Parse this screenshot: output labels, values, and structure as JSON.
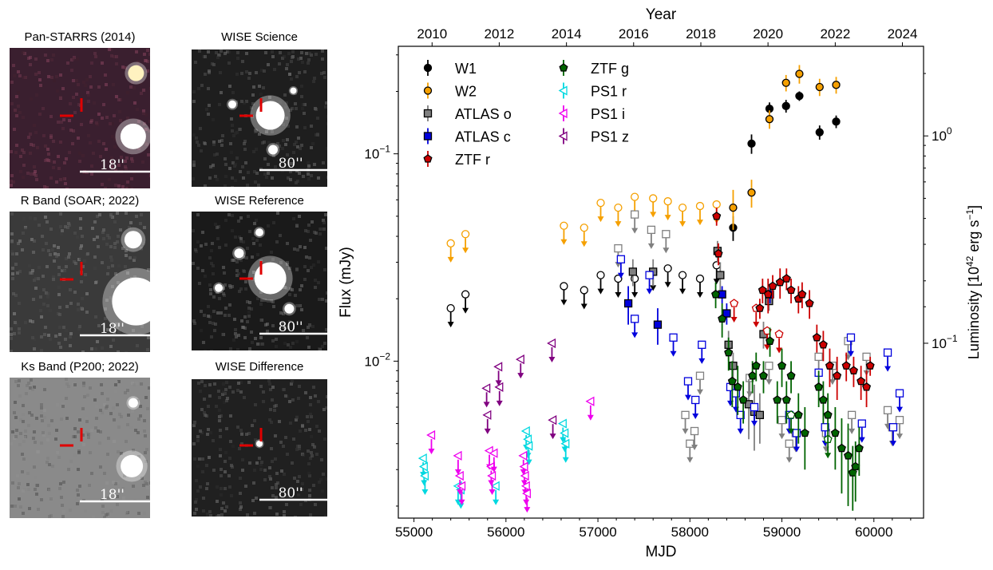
{
  "panels": [
    {
      "title": "Pan-STARRS (2014)",
      "scale": "18''",
      "bg": "#3a1f2f"
    },
    {
      "title": "WISE Science",
      "scale": "80''",
      "bg": "#1e1e1e"
    },
    {
      "title": "R Band (SOAR; 2022)",
      "scale": "18''",
      "bg": "#3a3a3a"
    },
    {
      "title": "WISE Reference",
      "scale": "80''",
      "bg": "#1a1a1a"
    },
    {
      "title": "Ks Band (P200; 2022)",
      "scale": "18''",
      "bg": "#8a8a8a"
    },
    {
      "title": "WISE Difference",
      "scale": "80''",
      "bg": "#202020"
    }
  ],
  "chart_data": {
    "type": "scatter",
    "xlabel": "MJD",
    "ylabel": "Flux (mJy)",
    "ylabel_right_main": "Luminosity [10",
    "ylabel_right_sup1": "42",
    "ylabel_right_mid": " erg s",
    "ylabel_right_sup2": "−1",
    "ylabel_right_end": "]",
    "top_xlabel": "Year",
    "xlim": [
      54830,
      60540
    ],
    "ylim_log": [
      0.00175,
      0.33
    ],
    "x_ticks": [
      "55000",
      "56000",
      "57000",
      "58000",
      "59000",
      "60000"
    ],
    "x_tick_values": [
      55000,
      56000,
      57000,
      58000,
      59000,
      60000
    ],
    "year_ticks": [
      "2010",
      "2012",
      "2014",
      "2016",
      "2018",
      "2020",
      "2022",
      "2024"
    ],
    "year_tick_mjd": [
      55197,
      55927,
      56658,
      57388,
      58119,
      58849,
      59580,
      60310
    ],
    "y_tick_labels": [
      {
        "label": "10",
        "sup": "−2",
        "value": 0.01
      },
      {
        "label": "10",
        "sup": "−1",
        "value": 0.1
      }
    ],
    "right_tick_labels": [
      {
        "label": "10",
        "sup": "0",
        "value": 0.122
      },
      {
        "label": "10",
        "sup": "−1",
        "value": 0.0122
      }
    ],
    "legend": [
      {
        "name": "W1",
        "color": "#000000",
        "marker": "circle"
      },
      {
        "name": "W2",
        "color": "#f5a000",
        "marker": "circle"
      },
      {
        "name": "ATLAS o",
        "color": "#808080",
        "marker": "square"
      },
      {
        "name": "ATLAS c",
        "color": "#0000dd",
        "marker": "square"
      },
      {
        "name": "ZTF r",
        "color": "#cc0000",
        "marker": "pentagon"
      },
      {
        "name": "ZTF g",
        "color": "#006400",
        "marker": "pentagon"
      },
      {
        "name": "PS1 r",
        "color": "#00d8e0",
        "marker": "triangle"
      },
      {
        "name": "PS1 i",
        "color": "#ee00ee",
        "marker": "triangle"
      },
      {
        "name": "PS1 z",
        "color": "#800080",
        "marker": "triangle"
      }
    ],
    "series": [
      {
        "name": "W1",
        "color": "#000000",
        "marker": "circle",
        "detections": [
          [
            58670,
            0.112,
            0.012
          ],
          [
            58865,
            0.165,
            0.012
          ],
          [
            59045,
            0.17,
            0.012
          ],
          [
            59190,
            0.19,
            0.01
          ],
          [
            59410,
            0.127,
            0.01
          ],
          [
            59590,
            0.143,
            0.01
          ],
          [
            58470,
            0.044,
            0.006
          ]
        ],
        "limits": [
          [
            55400,
            0.018
          ],
          [
            55560,
            0.021
          ],
          [
            56630,
            0.023
          ],
          [
            56850,
            0.022
          ],
          [
            57030,
            0.026
          ],
          [
            57220,
            0.025
          ],
          [
            57400,
            0.025
          ],
          [
            57600,
            0.027
          ],
          [
            57760,
            0.028
          ],
          [
            57920,
            0.026
          ],
          [
            58110,
            0.025
          ],
          [
            58290,
            0.029
          ]
        ]
      },
      {
        "name": "W2",
        "color": "#f5a000",
        "marker": "circle",
        "detections": [
          [
            58670,
            0.065,
            0.01
          ],
          [
            58865,
            0.147,
            0.015
          ],
          [
            59045,
            0.22,
            0.02
          ],
          [
            59190,
            0.243,
            0.025
          ],
          [
            59410,
            0.21,
            0.02
          ],
          [
            59590,
            0.215,
            0.02
          ],
          [
            58470,
            0.055,
            0.012
          ]
        ],
        "limits": [
          [
            55400,
            0.037
          ],
          [
            55560,
            0.041
          ],
          [
            56630,
            0.045
          ],
          [
            56850,
            0.044
          ],
          [
            57030,
            0.058
          ],
          [
            57220,
            0.055
          ],
          [
            57400,
            0.062
          ],
          [
            57600,
            0.061
          ],
          [
            57760,
            0.059
          ],
          [
            57920,
            0.055
          ],
          [
            58110,
            0.056
          ],
          [
            58290,
            0.057
          ]
        ]
      },
      {
        "name": "ATLAS o",
        "color": "#808080",
        "marker": "square",
        "detections": [
          [
            57380,
            0.027,
            0.004
          ],
          [
            57600,
            0.027,
            0.004
          ],
          [
            58300,
            0.034,
            0.004
          ],
          [
            58330,
            0.026,
            0.004
          ],
          [
            58420,
            0.012,
            0.002
          ],
          [
            58470,
            0.0095,
            0.0015
          ],
          [
            58640,
            0.0062,
            0.002
          ],
          [
            58700,
            0.0057,
            0.002
          ],
          [
            58760,
            0.0055,
            0.0015
          ],
          [
            58800,
            0.0135,
            0.002
          ],
          [
            58860,
            0.0195,
            0.002
          ]
        ],
        "limits": [
          [
            57220,
            0.035
          ],
          [
            57400,
            0.051
          ],
          [
            57580,
            0.043
          ],
          [
            57740,
            0.041
          ],
          [
            57950,
            0.0055
          ],
          [
            58000,
            0.004
          ],
          [
            58050,
            0.0046
          ],
          [
            58110,
            0.0085
          ],
          [
            58650,
            0.0083
          ],
          [
            58860,
            0.0095
          ],
          [
            59000,
            0.0052
          ],
          [
            59080,
            0.004
          ],
          [
            59150,
            0.0045
          ],
          [
            59400,
            0.0105
          ],
          [
            59480,
            0.0045
          ],
          [
            59550,
            0.0095
          ],
          [
            59720,
            0.0125
          ],
          [
            59760,
            0.0055
          ],
          [
            59920,
            0.0105
          ],
          [
            60150,
            0.0058
          ],
          [
            60200,
            0.0048
          ],
          [
            60280,
            0.0052
          ]
        ]
      },
      {
        "name": "ATLAS c",
        "color": "#0000dd",
        "marker": "square",
        "detections": [
          [
            57330,
            0.019,
            0.004
          ],
          [
            57650,
            0.015,
            0.003
          ],
          [
            58350,
            0.021,
            0.002
          ],
          [
            58400,
            0.017,
            0.002
          ],
          [
            58870,
            0.021,
            0.002
          ]
        ],
        "limits": [
          [
            57250,
            0.031
          ],
          [
            57400,
            0.016
          ],
          [
            57560,
            0.026
          ],
          [
            57820,
            0.013
          ],
          [
            57980,
            0.008
          ],
          [
            58060,
            0.0065
          ],
          [
            58130,
            0.012
          ],
          [
            58440,
            0.0075
          ],
          [
            58500,
            0.007
          ],
          [
            58550,
            0.0055
          ],
          [
            58700,
            0.006
          ],
          [
            59080,
            0.0055
          ],
          [
            59160,
            0.0045
          ],
          [
            59400,
            0.0088
          ],
          [
            59470,
            0.0048
          ],
          [
            59750,
            0.013
          ],
          [
            59870,
            0.005
          ],
          [
            60150,
            0.011
          ],
          [
            60210,
            0.0048
          ],
          [
            60280,
            0.007
          ]
        ]
      },
      {
        "name": "ZTF r",
        "color": "#cc0000",
        "marker": "pentagon",
        "detections": [
          [
            58290,
            0.05,
            0.005
          ],
          [
            58310,
            0.033,
            0.004
          ],
          [
            58760,
            0.018,
            0.002
          ],
          [
            58790,
            0.022,
            0.003
          ],
          [
            58850,
            0.021,
            0.004
          ],
          [
            58900,
            0.023,
            0.003
          ],
          [
            58980,
            0.024,
            0.004
          ],
          [
            59050,
            0.025,
            0.003
          ],
          [
            59100,
            0.022,
            0.003
          ],
          [
            59180,
            0.02,
            0.003
          ],
          [
            59220,
            0.021,
            0.003
          ],
          [
            59300,
            0.019,
            0.003
          ],
          [
            59380,
            0.013,
            0.002
          ],
          [
            59450,
            0.012,
            0.002
          ],
          [
            59520,
            0.0095,
            0.002
          ],
          [
            59600,
            0.0085,
            0.002
          ],
          [
            59700,
            0.0095,
            0.0015
          ],
          [
            59780,
            0.009,
            0.0015
          ],
          [
            59860,
            0.008,
            0.0015
          ],
          [
            59920,
            0.0075,
            0.0015
          ],
          [
            59960,
            0.0095,
            0.001
          ]
        ],
        "limits": [
          [
            58480,
            0.019
          ],
          [
            58720,
            0.018
          ],
          [
            58840,
            0.014
          ],
          [
            58970,
            0.0135
          ]
        ]
      },
      {
        "name": "ZTF g",
        "color": "#006400",
        "marker": "pentagon",
        "detections": [
          [
            58280,
            0.021,
            0.003
          ],
          [
            58350,
            0.016,
            0.003
          ],
          [
            58420,
            0.011,
            0.002
          ],
          [
            58460,
            0.008,
            0.002
          ],
          [
            58520,
            0.0075,
            0.002
          ],
          [
            58580,
            0.0065,
            0.0015
          ],
          [
            58680,
            0.0085,
            0.0015
          ],
          [
            58720,
            0.0095,
            0.0015
          ],
          [
            58800,
            0.0085,
            0.0015
          ],
          [
            58870,
            0.0125,
            0.002
          ],
          [
            58950,
            0.0065,
            0.0015
          ],
          [
            59000,
            0.0095,
            0.002
          ],
          [
            59050,
            0.0065,
            0.0015
          ],
          [
            59100,
            0.0085,
            0.0015
          ],
          [
            59180,
            0.0055,
            0.0015
          ],
          [
            59250,
            0.0045,
            0.0015
          ],
          [
            59400,
            0.0075,
            0.0015
          ],
          [
            59450,
            0.0065,
            0.0015
          ],
          [
            59500,
            0.0055,
            0.0015
          ],
          [
            59580,
            0.0045,
            0.0015
          ],
          [
            59650,
            0.0038,
            0.0015
          ],
          [
            59720,
            0.0035,
            0.0015
          ],
          [
            59770,
            0.0029,
            0.001
          ],
          [
            59800,
            0.0031,
            0.001
          ],
          [
            59840,
            0.0038,
            0.001
          ]
        ],
        "limits": [
          [
            59100,
            0.0055
          ],
          [
            59500,
            0.0042
          ]
        ]
      },
      {
        "name": "PS1 r",
        "color": "#00d8e0",
        "marker": "triangle",
        "detections": [],
        "limits": [
          [
            55100,
            0.0034
          ],
          [
            55110,
            0.0031
          ],
          [
            55120,
            0.0028
          ],
          [
            55480,
            0.0025
          ],
          [
            55510,
            0.0024
          ],
          [
            55890,
            0.0025
          ],
          [
            56220,
            0.0046
          ],
          [
            56240,
            0.0042
          ],
          [
            56250,
            0.0039
          ],
          [
            56620,
            0.005
          ],
          [
            56640,
            0.0045
          ],
          [
            56650,
            0.004
          ]
        ]
      },
      {
        "name": "PS1 i",
        "color": "#ee00ee",
        "marker": "triangle",
        "detections": [],
        "limits": [
          [
            55190,
            0.0044
          ],
          [
            55480,
            0.0035
          ],
          [
            55500,
            0.0028
          ],
          [
            55520,
            0.0025
          ],
          [
            55820,
            0.0037
          ],
          [
            55840,
            0.0031
          ],
          [
            55850,
            0.0028
          ],
          [
            55870,
            0.0036
          ],
          [
            56190,
            0.0035
          ],
          [
            56200,
            0.0031
          ],
          [
            56210,
            0.0028
          ],
          [
            56220,
            0.0025
          ],
          [
            56230,
            0.0023
          ],
          [
            56920,
            0.0064
          ]
        ]
      },
      {
        "name": "PS1 z",
        "color": "#800080",
        "marker": "triangle",
        "detections": [],
        "limits": [
          [
            55790,
            0.0074
          ],
          [
            55800,
            0.0055
          ],
          [
            55920,
            0.0094
          ],
          [
            55930,
            0.0075
          ],
          [
            56160,
            0.0102
          ],
          [
            56500,
            0.0122
          ],
          [
            56510,
            0.0052
          ]
        ]
      }
    ]
  }
}
